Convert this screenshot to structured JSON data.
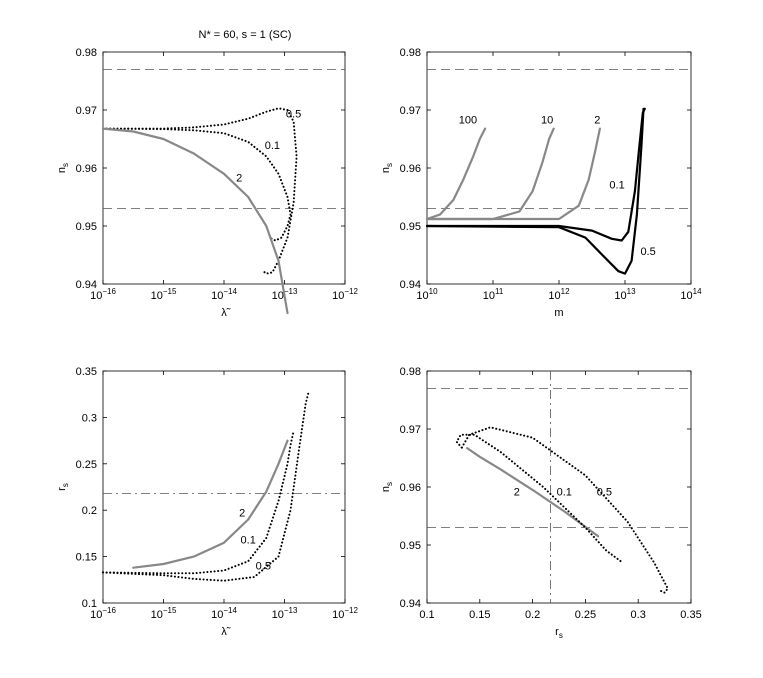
{
  "figure_title": "N* = 60,  s = 1  (SC)",
  "chart_data": [
    {
      "id": "p1",
      "type": "line",
      "xscale": "log",
      "xlim": [
        1e-16,
        1e-12
      ],
      "ylim": [
        0.94,
        0.98
      ],
      "xlabel": "λ̃",
      "ylabel": "n_s",
      "xticks": [
        -16,
        -15,
        -14,
        -13,
        -12
      ],
      "xtick_labels": [
        "10^-16",
        "10^-15",
        "10^-14",
        "10^-13",
        "10^-12"
      ],
      "yticks": [
        0.94,
        0.95,
        0.96,
        0.97,
        0.98
      ],
      "ytick_labels": [
        "0.94",
        "0.95",
        "0.96",
        "0.97",
        "0.98"
      ],
      "hlines": [
        {
          "y": 0.977,
          "style": "dashed"
        },
        {
          "y": 0.953,
          "style": "dashed"
        }
      ],
      "vlines": [],
      "series": [
        {
          "name": "0.5",
          "style": "dotted",
          "color": "#000000",
          "x": [
            -16,
            -15,
            -14.5,
            -14,
            -13.6,
            -13.3,
            -13.1,
            -12.95,
            -12.85,
            -12.8,
            -12.85,
            -12.95,
            -13.1,
            -13.2,
            -13.3,
            -13.35
          ],
          "y": [
            0.9668,
            0.9668,
            0.967,
            0.9675,
            0.9685,
            0.9697,
            0.9703,
            0.97,
            0.968,
            0.962,
            0.954,
            0.948,
            0.944,
            0.942,
            0.9418,
            0.9422
          ]
        },
        {
          "name": "0.1",
          "style": "dotted",
          "color": "#000000",
          "x": [
            -16,
            -15,
            -14.5,
            -14,
            -13.6,
            -13.3,
            -13.1,
            -12.95,
            -12.9,
            -12.95,
            -13.05,
            -13.15,
            -13.25
          ],
          "y": [
            0.9668,
            0.9667,
            0.9665,
            0.966,
            0.9645,
            0.962,
            0.959,
            0.955,
            0.952,
            0.95,
            0.948,
            0.9475,
            0.948
          ]
        },
        {
          "name": "2",
          "style": "solid",
          "color": "#888888",
          "x": [
            -16,
            -15.5,
            -15,
            -14.5,
            -14,
            -13.6,
            -13.3,
            -13.1,
            -12.95
          ],
          "y": [
            0.9668,
            0.9663,
            0.965,
            0.9625,
            0.959,
            0.955,
            0.95,
            0.944,
            0.935
          ]
        }
      ],
      "curve_labels": [
        {
          "text": "0.5",
          "x": -12.85,
          "y": 0.9687
        },
        {
          "text": "0.1",
          "x": -13.2,
          "y": 0.9633
        },
        {
          "text": "2",
          "x": -13.75,
          "y": 0.9577
        }
      ]
    },
    {
      "id": "p2",
      "type": "line",
      "xscale": "log",
      "xlim": [
        10000000000.0,
        100000000000000.0
      ],
      "ylim": [
        0.94,
        0.98
      ],
      "xlabel": "m",
      "ylabel": "n_s",
      "xticks": [
        10,
        11,
        12,
        13,
        14
      ],
      "xtick_labels": [
        "10^10",
        "10^11",
        "10^12",
        "10^13",
        "10^14"
      ],
      "yticks": [
        0.94,
        0.95,
        0.96,
        0.97,
        0.98
      ],
      "ytick_labels": [
        "0.94",
        "0.95",
        "0.96",
        "0.97",
        "0.98"
      ],
      "hlines": [
        {
          "y": 0.977,
          "style": "dashed"
        },
        {
          "y": 0.953,
          "style": "dashed"
        }
      ],
      "vlines": [],
      "series": [
        {
          "name": "100",
          "style": "solid",
          "color": "#888888",
          "x": [
            10,
            10.2,
            10.4,
            10.55,
            10.7,
            10.8,
            10.88
          ],
          "y": [
            0.9512,
            0.952,
            0.9545,
            0.958,
            0.962,
            0.965,
            0.9668
          ]
        },
        {
          "name": "10",
          "style": "solid",
          "color": "#888888",
          "x": [
            10,
            11,
            11.4,
            11.6,
            11.75,
            11.85,
            11.92
          ],
          "y": [
            0.9512,
            0.9512,
            0.9525,
            0.956,
            0.961,
            0.965,
            0.9668
          ]
        },
        {
          "name": "2",
          "style": "solid",
          "color": "#888888",
          "x": [
            10,
            12,
            12.3,
            12.45,
            12.55,
            12.62
          ],
          "y": [
            0.9512,
            0.9512,
            0.9535,
            0.958,
            0.963,
            0.9668
          ]
        },
        {
          "name": "0.1",
          "style": "solid",
          "color": "#000000",
          "x": [
            10,
            12,
            12.5,
            12.8,
            12.95,
            13.05,
            13.15,
            13.22,
            13.27,
            13.3
          ],
          "y": [
            0.95,
            0.95,
            0.9492,
            0.9478,
            0.9475,
            0.949,
            0.956,
            0.964,
            0.9695,
            0.9702
          ]
        },
        {
          "name": "0.5",
          "style": "solid",
          "color": "#000000",
          "x": [
            10,
            12,
            12.4,
            12.7,
            12.9,
            13.0,
            13.1,
            13.18,
            13.25,
            13.28
          ],
          "y": [
            0.95,
            0.9498,
            0.948,
            0.9445,
            0.9422,
            0.9418,
            0.944,
            0.952,
            0.964,
            0.9702
          ]
        }
      ],
      "curve_labels": [
        {
          "text": "100",
          "x": 10.62,
          "y": 0.9677
        },
        {
          "text": "10",
          "x": 11.82,
          "y": 0.9677
        },
        {
          "text": "2",
          "x": 12.58,
          "y": 0.9677
        },
        {
          "text": "0.1",
          "x": 12.88,
          "y": 0.9565
        },
        {
          "text": "0.5",
          "x": 13.35,
          "y": 0.945
        }
      ]
    },
    {
      "id": "p3",
      "type": "line",
      "xscale": "log",
      "xlim": [
        1e-16,
        1e-12
      ],
      "ylim": [
        0.1,
        0.35
      ],
      "xlabel": "λ̃",
      "ylabel": "r_s",
      "xticks": [
        -16,
        -15,
        -14,
        -13,
        -12
      ],
      "xtick_labels": [
        "10^-16",
        "10^-15",
        "10^-14",
        "10^-13",
        "10^-12"
      ],
      "yticks": [
        0.1,
        0.15,
        0.2,
        0.25,
        0.3,
        0.35
      ],
      "ytick_labels": [
        "0.1",
        "0.15",
        "0.2",
        "0.25",
        "0.3",
        "0.35"
      ],
      "hlines": [
        {
          "y": 0.218,
          "style": "dashdot"
        }
      ],
      "vlines": [],
      "series": [
        {
          "name": "2",
          "style": "solid",
          "color": "#888888",
          "x": [
            -15.5,
            -15,
            -14.5,
            -14,
            -13.6,
            -13.3,
            -13.1,
            -12.95
          ],
          "y": [
            0.138,
            0.142,
            0.15,
            0.165,
            0.19,
            0.22,
            0.25,
            0.275
          ]
        },
        {
          "name": "0.1",
          "style": "dotted",
          "color": "#000000",
          "x": [
            -16,
            -15,
            -14.5,
            -14,
            -13.6,
            -13.3,
            -13.1,
            -12.95,
            -12.9,
            -12.85
          ],
          "y": [
            0.133,
            0.132,
            0.132,
            0.135,
            0.145,
            0.17,
            0.21,
            0.25,
            0.27,
            0.285
          ]
        },
        {
          "name": "0.5",
          "style": "dotted",
          "color": "#000000",
          "x": [
            -16,
            -15,
            -14.5,
            -14,
            -13.5,
            -13.1,
            -12.9,
            -12.75,
            -12.65,
            -12.6
          ],
          "y": [
            0.133,
            0.13,
            0.126,
            0.124,
            0.128,
            0.15,
            0.2,
            0.27,
            0.315,
            0.328
          ]
        }
      ],
      "curve_labels": [
        {
          "text": "2",
          "x": -13.7,
          "y": 0.193
        },
        {
          "text": "0.1",
          "x": -13.6,
          "y": 0.164
        },
        {
          "text": "0.5",
          "x": -13.35,
          "y": 0.136
        }
      ]
    },
    {
      "id": "p4",
      "type": "line",
      "xscale": "linear",
      "xlim": [
        0.1,
        0.35
      ],
      "ylim": [
        0.94,
        0.98
      ],
      "xlabel": "r_s",
      "ylabel": "n_s",
      "xticks": [
        0.1,
        0.15,
        0.2,
        0.25,
        0.3,
        0.35
      ],
      "xtick_labels": [
        "0.1",
        "0.15",
        "0.2",
        "0.25",
        "0.3",
        "0.35"
      ],
      "yticks": [
        0.94,
        0.95,
        0.96,
        0.97,
        0.98
      ],
      "ytick_labels": [
        "0.94",
        "0.95",
        "0.96",
        "0.97",
        "0.98"
      ],
      "hlines": [
        {
          "y": 0.977,
          "style": "dashed"
        },
        {
          "y": 0.953,
          "style": "dashed"
        }
      ],
      "vlines": [
        {
          "x": 0.217,
          "style": "dashdot"
        }
      ],
      "series": [
        {
          "name": "2",
          "style": "solid",
          "color": "#888888",
          "x": [
            0.138,
            0.15,
            0.17,
            0.2,
            0.23,
            0.262
          ],
          "y": [
            0.9667,
            0.9652,
            0.963,
            0.9595,
            0.9558,
            0.9515
          ]
        },
        {
          "name": "0.1",
          "style": "dotted",
          "color": "#000000",
          "x": [
            0.133,
            0.128,
            0.132,
            0.145,
            0.17,
            0.21,
            0.25,
            0.27,
            0.285
          ],
          "y": [
            0.9668,
            0.9678,
            0.969,
            0.969,
            0.966,
            0.96,
            0.953,
            0.949,
            0.947
          ]
        },
        {
          "name": "0.5",
          "style": "dotted",
          "color": "#000000",
          "x": [
            0.133,
            0.14,
            0.16,
            0.2,
            0.25,
            0.29,
            0.315,
            0.328,
            0.325,
            0.32
          ],
          "y": [
            0.9668,
            0.969,
            0.9703,
            0.9685,
            0.962,
            0.954,
            0.947,
            0.9425,
            0.9418,
            0.9422
          ]
        }
      ],
      "curve_labels": [
        {
          "text": "2",
          "x": 0.185,
          "y": 0.9585
        },
        {
          "text": "0.1",
          "x": 0.23,
          "y": 0.9585
        },
        {
          "text": "0.5",
          "x": 0.268,
          "y": 0.9585
        }
      ]
    }
  ]
}
